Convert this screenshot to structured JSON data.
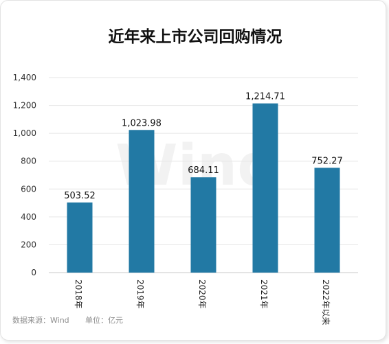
{
  "chart_data": {
    "type": "bar",
    "title": "近年来上市公司回购情况",
    "categories": [
      "2018年",
      "2019年",
      "2020年",
      "2021年",
      "2022年以来"
    ],
    "values": [
      503.52,
      1023.98,
      684.11,
      1214.71,
      752.27
    ],
    "value_labels": [
      "503.52",
      "1,023.98",
      "684.11",
      "1,214.71",
      "752.27"
    ],
    "y_ticks": [
      "0",
      "200",
      "400",
      "600",
      "800",
      "1,000",
      "1,200",
      "1,400"
    ],
    "ylim": [
      0,
      1400
    ],
    "grid": true,
    "bar_color": "#2279a4",
    "watermark": "Wind",
    "source_note": "数据来源：Wind",
    "unit_note": "单位：亿元"
  }
}
